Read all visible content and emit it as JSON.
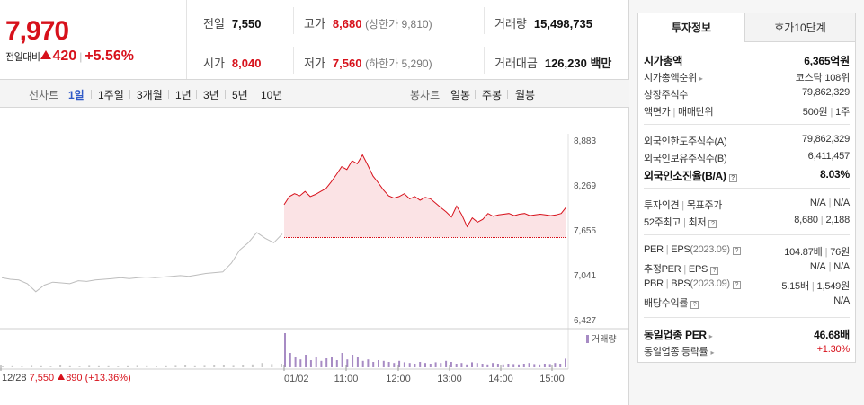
{
  "stock": {
    "price": "7,970",
    "change_label": "전일대비",
    "change_amount": "420",
    "change_pct": "+5.56%"
  },
  "quote": {
    "prev_close_label": "전일",
    "prev_close": "7,550",
    "high_label": "고가",
    "high": "8,680",
    "upper_limit": "(상한가 9,810)",
    "volume_label": "거래량",
    "volume": "15,498,735",
    "open_label": "시가",
    "open": "8,040",
    "low_label": "저가",
    "low": "7,560",
    "lower_limit": "(하한가 5,290)",
    "turnover_label": "거래대금",
    "turnover": "126,230",
    "turnover_unit": "백만"
  },
  "toolbar": {
    "line_chart_label": "선차트",
    "periods": [
      "1일",
      "1주일",
      "3개월",
      "1년",
      "3년",
      "5년",
      "10년"
    ],
    "active_period": "1일",
    "candle_chart_label": "봉차트",
    "candles": [
      "일봉",
      "주봉",
      "월봉"
    ]
  },
  "chart_data": {
    "type": "line",
    "y_ticks": [
      "8,883",
      "8,269",
      "7,655",
      "7,041",
      "6,427"
    ],
    "ylim": [
      6427,
      8883
    ],
    "x_ticks": [
      "12/28",
      "01/02",
      "11:00",
      "12:00",
      "13:00",
      "14:00",
      "15:00"
    ],
    "prev_close_line": 7550,
    "series": [
      {
        "period": "previous",
        "values": [
          7000,
          6980,
          6970,
          6920,
          6810,
          6900,
          6940,
          6930,
          6920,
          6960,
          6950,
          6970,
          6980,
          6990,
          7000,
          6990,
          7000,
          7010,
          7000,
          7010,
          7020,
          7030,
          7020,
          7040,
          7060,
          7070,
          7080,
          7200,
          7380,
          7480,
          7620,
          7540,
          7480,
          7600
        ]
      },
      {
        "period": "today",
        "values": [
          8000,
          8110,
          8150,
          8120,
          8180,
          8110,
          8140,
          8180,
          8220,
          8310,
          8410,
          8520,
          8480,
          8600,
          8560,
          8680,
          8540,
          8390,
          8300,
          8200,
          8120,
          8090,
          8110,
          8150,
          8080,
          8110,
          8060,
          8100,
          8080,
          8020,
          7960,
          7900,
          7830,
          7980,
          7860,
          7700,
          7820,
          7760,
          7800,
          7880,
          7840,
          7860,
          7870,
          7880,
          7850,
          7870,
          7880,
          7850,
          7860,
          7870,
          7860,
          7850,
          7860,
          7880,
          7970
        ]
      }
    ],
    "volume_label": "거래량",
    "volume_prev": [
      2,
      3,
      2,
      4,
      3,
      2,
      5,
      3,
      2,
      4,
      3,
      3,
      2,
      3,
      4,
      3,
      2,
      3,
      4,
      5,
      3,
      4,
      6,
      5,
      4,
      6,
      8,
      12,
      9,
      10
    ],
    "volume_today": [
      95,
      40,
      30,
      22,
      35,
      20,
      28,
      18,
      25,
      30,
      20,
      40,
      22,
      35,
      30,
      18,
      22,
      15,
      20,
      18,
      15,
      12,
      18,
      14,
      12,
      10,
      15,
      12,
      10,
      14,
      12,
      18,
      15,
      10,
      12,
      8,
      14,
      12,
      10,
      8,
      12,
      10,
      8,
      10,
      9,
      8,
      10,
      12,
      9,
      8,
      10,
      9,
      12,
      10,
      24
    ]
  },
  "bottom_info": {
    "date": "12/28",
    "price": "7,550",
    "change": "890",
    "pct": "(+13.36%)"
  },
  "invest_info": {
    "tab_active": "투자정보",
    "tab_other": "호가10단계",
    "market_cap_label": "시가총액",
    "market_cap": "6,365억원",
    "market_cap_rank_label": "시가총액순위",
    "market_cap_rank": "코스닥 108위",
    "shares_label": "상장주식수",
    "shares": "79,862,329",
    "par_label": "액면가",
    "unit_label": "매매단위",
    "par": "500원",
    "unit": "1주",
    "foreign_limit_label": "외국인한도주식수(A)",
    "foreign_limit": "79,862,329",
    "foreign_hold_label": "외국인보유주식수(B)",
    "foreign_hold": "6,411,457",
    "foreign_ratio_label": "외국인소진율(B/A)",
    "foreign_ratio": "8.03%",
    "opinion_label": "투자의견",
    "target_label": "목표주가",
    "opinion": "N/A",
    "target": "N/A",
    "week52_high_label": "52주최고",
    "week52_low_label": "최저",
    "week52_high": "8,680",
    "week52_low": "2,188",
    "per_label": "PER",
    "eps_label": "EPS",
    "eps_year": "(2023.09)",
    "per": "104.87배",
    "eps": "76원",
    "est_per_label": "추정PER",
    "est_eps_label": "EPS",
    "est_per": "N/A",
    "est_eps": "N/A",
    "pbr_label": "PBR",
    "bps_label": "BPS",
    "bps_year": "(2023.09)",
    "pbr": "5.15배",
    "bps": "1,549원",
    "div_label": "배당수익률",
    "div": "N/A",
    "industry_per_label": "동일업종 PER",
    "industry_per": "46.68배",
    "industry_chg_label": "동일업종 등락률",
    "industry_chg": "+1.30%"
  },
  "colors": {
    "up": "#d7111b",
    "active_blue": "#2f59c7",
    "line_prev": "#bdbdbd",
    "fill_today": "#fbe3e5",
    "volume_today": "#a78bc4"
  }
}
